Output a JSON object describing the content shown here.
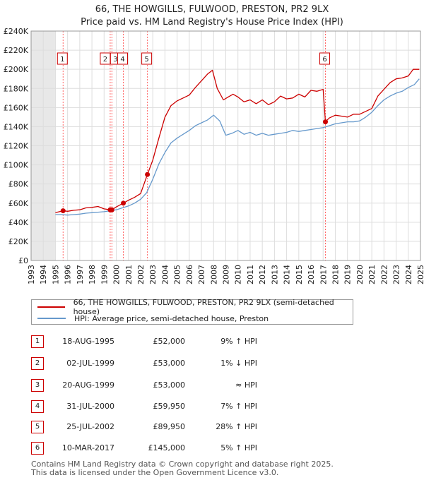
{
  "title_line1": "66, THE HOWGILLS, FULWOOD, PRESTON, PR2 9LX",
  "title_line2": "Price paid vs. HM Land Registry's House Price Index (HPI)",
  "legend": {
    "property": "66, THE HOWGILLS, FULWOOD, PRESTON, PR2 9LX (semi-detached house)",
    "hpi": "HPI: Average price, semi-detached house, Preston"
  },
  "colors": {
    "property": "#cc0000",
    "hpi": "#6699cc",
    "grid": "#dddddd",
    "shade": "#e8e8e8",
    "marker_line": "#ff6666"
  },
  "transactions": [
    {
      "n": "1",
      "date": "18-AUG-1995",
      "price": "£52,000",
      "hpi": "9% ↑ HPI"
    },
    {
      "n": "2",
      "date": "02-JUL-1999",
      "price": "£53,000",
      "hpi": "1% ↓ HPI"
    },
    {
      "n": "3",
      "date": "20-AUG-1999",
      "price": "£53,000",
      "hpi": "≈ HPI"
    },
    {
      "n": "4",
      "date": "31-JUL-2000",
      "price": "£59,950",
      "hpi": "7% ↑ HPI"
    },
    {
      "n": "5",
      "date": "25-JUL-2002",
      "price": "£89,950",
      "hpi": "28% ↑ HPI"
    },
    {
      "n": "6",
      "date": "10-MAR-2017",
      "price": "£145,000",
      "hpi": "5% ↑ HPI"
    }
  ],
  "footer_line1": "Contains HM Land Registry data © Crown copyright and database right 2025.",
  "footer_line2": "This data is licensed under the Open Government Licence v3.0.",
  "chart_data": {
    "type": "line",
    "xlim": [
      1993,
      2025
    ],
    "ylim": [
      0,
      240000
    ],
    "x_ticks": [
      "1993",
      "1994",
      "1995",
      "1996",
      "1997",
      "1998",
      "1999",
      "2000",
      "2001",
      "2002",
      "2003",
      "2004",
      "2005",
      "2006",
      "2007",
      "2008",
      "2009",
      "2010",
      "2011",
      "2012",
      "2013",
      "2014",
      "2015",
      "2016",
      "2017",
      "2018",
      "2019",
      "2020",
      "2021",
      "2022",
      "2023",
      "2024",
      "2025"
    ],
    "y_ticks": [
      {
        "value": 0,
        "label": "£0"
      },
      {
        "value": 20000,
        "label": "£20K"
      },
      {
        "value": 40000,
        "label": "£40K"
      },
      {
        "value": 60000,
        "label": "£60K"
      },
      {
        "value": 80000,
        "label": "£80K"
      },
      {
        "value": 100000,
        "label": "£100K"
      },
      {
        "value": 120000,
        "label": "£120K"
      },
      {
        "value": 140000,
        "label": "£140K"
      },
      {
        "value": 160000,
        "label": "£160K"
      },
      {
        "value": 180000,
        "label": "£180K"
      },
      {
        "value": 200000,
        "label": "£200K"
      },
      {
        "value": 220000,
        "label": "£220K"
      },
      {
        "value": 240000,
        "label": "£240K"
      }
    ],
    "grid": true,
    "shaded_before": 1995.0,
    "sales": [
      {
        "label": "1",
        "x": 1995.63,
        "y": 52000
      },
      {
        "label": "2",
        "x": 1999.5,
        "y": 53000
      },
      {
        "label": "3",
        "x": 1999.64,
        "y": 53000
      },
      {
        "label": "4",
        "x": 2000.58,
        "y": 59950
      },
      {
        "label": "5",
        "x": 2002.56,
        "y": 89950
      },
      {
        "label": "6",
        "x": 2017.19,
        "y": 145000
      }
    ],
    "series": [
      {
        "name": "66, THE HOWGILLS, FULWOOD, PRESTON, PR2 9LX (semi-detached house)",
        "x": [
          1995.0,
          1995.63,
          1996.0,
          1996.5,
          1997.0,
          1997.5,
          1998.0,
          1998.5,
          1999.0,
          1999.5,
          1999.64,
          2000.0,
          2000.58,
          2001.0,
          2001.5,
          2002.0,
          2002.56,
          2003.0,
          2003.5,
          2004.0,
          2004.5,
          2005.0,
          2005.5,
          2006.0,
          2006.5,
          2007.0,
          2007.5,
          2007.9,
          2008.3,
          2008.8,
          2009.2,
          2009.6,
          2010.0,
          2010.5,
          2011.0,
          2011.5,
          2012.0,
          2012.5,
          2013.0,
          2013.5,
          2014.0,
          2014.5,
          2015.0,
          2015.5,
          2016.0,
          2016.5,
          2017.0,
          2017.19,
          2017.5,
          2018.0,
          2018.5,
          2019.0,
          2019.5,
          2020.0,
          2020.5,
          2021.0,
          2021.5,
          2022.0,
          2022.5,
          2023.0,
          2023.5,
          2024.0,
          2024.4,
          2024.9
        ],
        "y": [
          50000,
          52000,
          51500,
          52500,
          53000,
          55000,
          55500,
          56500,
          54000,
          53000,
          53000,
          56000,
          59950,
          63000,
          66000,
          70000,
          89950,
          105000,
          128000,
          150000,
          162000,
          167000,
          170000,
          173000,
          181000,
          188000,
          195000,
          199000,
          180000,
          168000,
          171000,
          174000,
          171000,
          166000,
          168000,
          164000,
          168000,
          163000,
          166000,
          172000,
          169000,
          170000,
          174000,
          171000,
          178000,
          177000,
          179000,
          145000,
          149000,
          152000,
          151000,
          150000,
          153000,
          153000,
          156000,
          159000,
          172000,
          179000,
          186000,
          190000,
          191000,
          193000,
          200000,
          200000
        ]
      },
      {
        "name": "HPI: Average price, semi-detached house, Preston",
        "x": [
          1995.0,
          1995.5,
          1996.0,
          1996.5,
          1997.0,
          1997.5,
          1998.0,
          1998.5,
          1999.0,
          1999.5,
          2000.0,
          2000.5,
          2001.0,
          2001.5,
          2002.0,
          2002.5,
          2003.0,
          2003.5,
          2004.0,
          2004.5,
          2005.0,
          2005.5,
          2006.0,
          2006.5,
          2007.0,
          2007.5,
          2008.0,
          2008.5,
          2009.0,
          2009.5,
          2010.0,
          2010.5,
          2011.0,
          2011.5,
          2012.0,
          2012.5,
          2013.0,
          2013.5,
          2014.0,
          2014.5,
          2015.0,
          2015.5,
          2016.0,
          2016.5,
          2017.0,
          2017.5,
          2018.0,
          2018.5,
          2019.0,
          2019.5,
          2020.0,
          2020.5,
          2021.0,
          2021.5,
          2022.0,
          2022.5,
          2023.0,
          2023.5,
          2024.0,
          2024.5,
          2024.9
        ],
        "y": [
          48000,
          48000,
          47500,
          48000,
          48500,
          49500,
          50000,
          50500,
          51000,
          52000,
          53000,
          55000,
          57000,
          60000,
          64000,
          71000,
          85000,
          101000,
          113000,
          123000,
          128000,
          132000,
          136000,
          141000,
          144000,
          147000,
          152000,
          146000,
          131000,
          133000,
          136000,
          132000,
          134000,
          131000,
          133000,
          131000,
          132000,
          133000,
          134000,
          136000,
          135000,
          136000,
          137000,
          138000,
          139000,
          141000,
          143000,
          144000,
          145000,
          145000,
          146000,
          150000,
          155000,
          162000,
          168000,
          172000,
          175000,
          177000,
          181000,
          184000,
          190000
        ]
      }
    ]
  }
}
